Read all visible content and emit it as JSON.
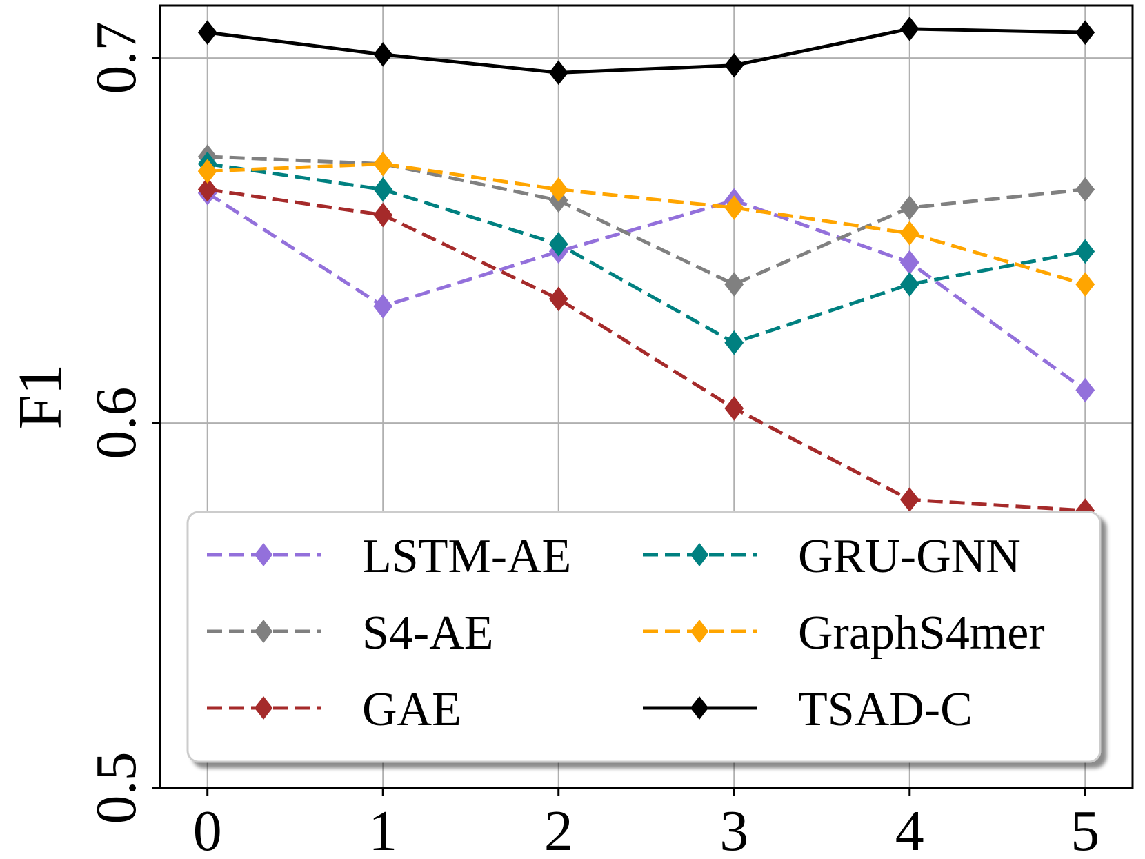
{
  "chart_data": {
    "type": "line",
    "title": "",
    "xlabel": "",
    "ylabel": "F1",
    "x": [
      0,
      1,
      2,
      3,
      4,
      5
    ],
    "x_tick_labels": [
      "0",
      "1",
      "2",
      "3",
      "4",
      "5"
    ],
    "y_ticks": [
      0.5,
      0.6,
      0.7
    ],
    "y_tick_labels": [
      "0.5",
      "0.6",
      "0.7"
    ],
    "xlim": [
      -0.27,
      5.27
    ],
    "ylim": [
      0.5,
      0.7144
    ],
    "grid": true,
    "legend_placement": "bottom-center",
    "series": [
      {
        "name": "LSTM-AE",
        "color": "#9370DB",
        "dashed": true,
        "values": [
          0.663,
          0.632,
          0.647,
          0.661,
          0.644,
          0.609
        ]
      },
      {
        "name": "S4-AE",
        "color": "#808080",
        "dashed": true,
        "values": [
          0.673,
          0.671,
          0.661,
          0.638,
          0.659,
          0.664
        ]
      },
      {
        "name": "GAE",
        "color": "#A52A2A",
        "dashed": true,
        "values": [
          0.664,
          0.657,
          0.634,
          0.604,
          0.579,
          0.576
        ]
      },
      {
        "name": "GRU-GNN",
        "color": "#008080",
        "dashed": true,
        "values": [
          0.671,
          0.664,
          0.649,
          0.622,
          0.638,
          0.647
        ]
      },
      {
        "name": "GraphS4mer",
        "color": "#FFA500",
        "dashed": true,
        "values": [
          0.669,
          0.671,
          0.664,
          0.659,
          0.652,
          0.638
        ]
      },
      {
        "name": "TSAD-C",
        "color": "#000000",
        "dashed": false,
        "values": [
          0.707,
          0.701,
          0.696,
          0.698,
          0.708,
          0.707
        ]
      }
    ]
  }
}
